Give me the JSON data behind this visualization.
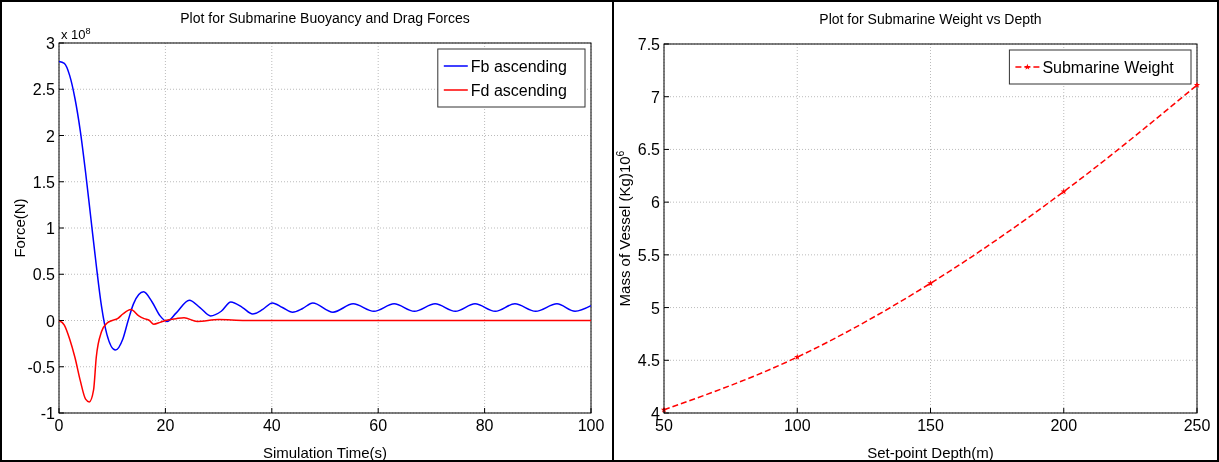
{
  "chart_data": [
    {
      "type": "line",
      "title": "Plot for Submarine Buoyancy and Drag Forces",
      "xlabel": "Simulation Time(s)",
      "ylabel": "Force(N)",
      "annotations": [
        "x 10$^{8}$"
      ],
      "xlim": [
        0,
        100
      ],
      "xticks": [
        0,
        20,
        40,
        60,
        80,
        100
      ],
      "ylim": [
        -1,
        3
      ],
      "yticks": [
        -1,
        -0.5,
        0,
        0.5,
        1,
        1.5,
        2,
        2.5,
        3
      ],
      "grid": true,
      "legend": "top right",
      "line_style": "solid",
      "series": [
        {
          "name": "Fb ascending",
          "color": "#0000ff",
          "x": [
            0,
            1,
            2,
            3,
            4,
            5,
            6,
            7,
            8,
            9,
            10.6,
            12,
            13,
            14,
            15.9,
            17.5,
            19,
            20.3,
            22,
            24.5,
            26.5,
            28.5,
            30.5,
            32.3,
            34.5,
            36.4,
            38.3,
            40.1,
            42,
            43.9,
            45.8,
            47.7,
            51.5,
            55.3,
            59.2,
            63,
            66.8,
            70.7,
            74.5,
            78.2,
            82,
            85.7,
            89.6,
            93.6,
            97,
            100
          ],
          "values": [
            2.8,
            2.78,
            2.65,
            2.4,
            2.05,
            1.6,
            1.1,
            0.6,
            0.15,
            -0.15,
            -0.32,
            -0.2,
            0.0,
            0.18,
            0.31,
            0.2,
            0.05,
            -0.01,
            0.08,
            0.22,
            0.14,
            0.05,
            0.1,
            0.2,
            0.14,
            0.07,
            0.12,
            0.19,
            0.14,
            0.09,
            0.13,
            0.19,
            0.09,
            0.18,
            0.1,
            0.18,
            0.1,
            0.18,
            0.1,
            0.18,
            0.1,
            0.18,
            0.1,
            0.18,
            0.1,
            0.16
          ]
        },
        {
          "name": "Fd ascending",
          "color": "#ff0000",
          "x": [
            0,
            1,
            2,
            3,
            4,
            5,
            5.7,
            6.5,
            7,
            8,
            9,
            10,
            11,
            12,
            13.5,
            15,
            16,
            17,
            17.8,
            19,
            20,
            22,
            23.5,
            26,
            30,
            35,
            100
          ],
          "values": [
            0,
            -0.05,
            -0.2,
            -0.4,
            -0.65,
            -0.85,
            -0.88,
            -0.75,
            -0.4,
            -0.12,
            -0.03,
            0,
            0.02,
            0.07,
            0.12,
            0.05,
            0.02,
            0,
            -0.04,
            -0.02,
            0,
            0.02,
            0.03,
            -0.01,
            0.01,
            0,
            0
          ]
        }
      ]
    },
    {
      "type": "line",
      "title": "Plot for Submarine Weight vs Depth",
      "xlabel": "Set-point Depth(m)",
      "ylabel": "Mass of Vessel (Kg)10$^{6}$",
      "xlim": [
        50,
        250
      ],
      "xticks": [
        50,
        100,
        150,
        200,
        250
      ],
      "ylim": [
        4,
        7.5
      ],
      "yticks": [
        4,
        4.5,
        5,
        5.5,
        6,
        6.5,
        7,
        7.5
      ],
      "grid": true,
      "legend": "top right",
      "line_style": "dashed",
      "marker": "star",
      "series": [
        {
          "name": "Submarine Weight",
          "color": "#ff0000",
          "x": [
            50,
            100,
            150,
            200,
            250
          ],
          "values": [
            4.03,
            4.53,
            5.23,
            6.1,
            7.11
          ]
        }
      ]
    }
  ]
}
